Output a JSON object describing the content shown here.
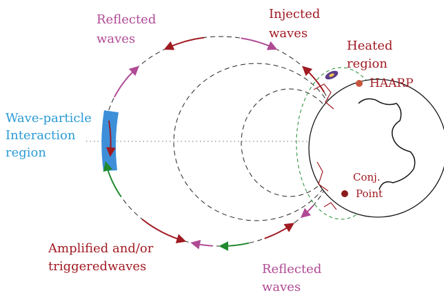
{
  "labels": [
    {
      "lines": [
        "Reflected",
        "waves"
      ]
    },
    {
      "lines": [
        "Injected",
        "waves"
      ]
    },
    {
      "lines": [
        "Heated",
        "region"
      ]
    },
    {
      "lines": [
        "HAARP"
      ]
    },
    {
      "lines": [
        "Wave-particle",
        "Interaction",
        "region"
      ]
    },
    {
      "lines": [
        "Conj.",
        "Point"
      ]
    },
    {
      "lines": [
        "Amplified and/or",
        "triggeredwaves"
      ]
    },
    {
      "lines": [
        "Reflected",
        "waves"
      ]
    }
  ]
}
